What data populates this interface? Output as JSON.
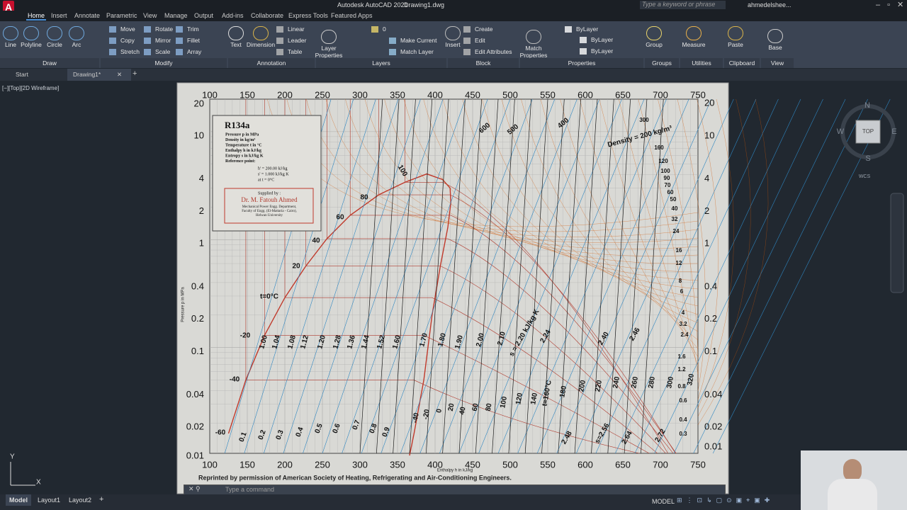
{
  "title_bar": {
    "app": "Autodesk AutoCAD 2021",
    "file": "Drawing1.dwg",
    "search": "Type a keyword or phrase",
    "user": "ahmedelshee..."
  },
  "ribbon_tabs": [
    "Home",
    "Insert",
    "Annotate",
    "Parametric",
    "View",
    "Manage",
    "Output",
    "Add-ins",
    "Collaborate",
    "Express Tools",
    "Featured Apps"
  ],
  "tools": [
    "Line",
    "Polyline",
    "Circle",
    "Arc",
    "Move",
    "Rotate",
    "Trim",
    "Copy",
    "Mirror",
    "Fillet",
    "Stretch",
    "Scale",
    "Array",
    "Text",
    "Dimension",
    "Linear",
    "Leader",
    "Table",
    "Layer Properties",
    "Make Current",
    "Match Layer",
    "0",
    "Insert",
    "Create",
    "Edit",
    "Edit Attributes",
    "Match Properties",
    "ByLayer",
    "ByLayer",
    "ByLayer",
    "Group",
    "Measure",
    "Paste",
    "Base"
  ],
  "panels": [
    "Draw",
    "Modify",
    "Annotation",
    "Layers",
    "Block",
    "Properties",
    "Groups",
    "Utilities",
    "Clipboard",
    "View"
  ],
  "doc_tabs": [
    "Start",
    "Drawing1*"
  ],
  "viewport_label": "[−][Top][2D Wireframe]",
  "viewcube": {
    "n": "N",
    "w": "W",
    "e": "E",
    "s": "S",
    "top": "TOP",
    "wcs": "WCS"
  },
  "ucs": {
    "y": "Y",
    "x": "X"
  },
  "command_line": "Type a command",
  "status_bar": {
    "tabs": [
      "Model",
      "Layout1",
      "Layout2"
    ],
    "mode": "MODEL"
  },
  "diagram": {
    "enthalpy_ticks_top": [
      "100",
      "150",
      "200",
      "250",
      "300",
      "350",
      "400",
      "450",
      "500",
      "550",
      "600",
      "650",
      "700",
      "750"
    ],
    "enthalpy_ticks_bottom": [
      "100",
      "150",
      "200",
      "250",
      "300",
      "350",
      "400",
      "450",
      "500",
      "550",
      "600",
      "650",
      "700",
      "750"
    ],
    "pressure_ticks_left": [
      "20",
      "10",
      "4",
      "2",
      "1",
      "0.4",
      "0.2",
      "0.1",
      "0.04",
      "0.02",
      "0.01"
    ],
    "pressure_ticks_right": [
      "20",
      "10",
      "4",
      "2",
      "1",
      "0.4",
      "0.2",
      "0.1",
      "0.04",
      "0.02",
      "0.01"
    ],
    "x_axis_title": "Enthalpy h in kJ/kg",
    "y_axis_title": "Pressure p in MPa",
    "legend_box": {
      "fluid": "R134a",
      "lines": [
        "Pressure p in MPa",
        "Density in kg/m³",
        "Temperature t in °C",
        "Enthalpy h in kJ/kg",
        "Entropy s in kJ/kg K",
        "Reference point:"
      ],
      "reference": [
        "h' = 200.00 kJ/kg",
        "s' = 1.000 kJ/kg K",
        "at t = 0°C"
      ],
      "supplied_by": "Supplied by :",
      "author": "Dr. M. Fatouh Ahmed",
      "affiliation": [
        "Mechanical Power Engg. Department,",
        "Faculty of Engg. (El-Mattaria - Cairo),",
        "Helwan University"
      ]
    },
    "curve_labels": [
      "t=0°C",
      "20",
      "40",
      "60",
      "80",
      "100",
      "-20",
      "-40",
      "-60",
      "600",
      "500",
      "400",
      "Density = 200 kg/m³",
      "300",
      "160",
      "120",
      "100",
      "90",
      "70",
      "60",
      "50",
      "40",
      "32",
      "24",
      "16",
      "12",
      "8",
      "6",
      "4",
      "3.2",
      "2.4",
      "1.6",
      "1.2",
      "0.8",
      "0.6",
      "0.4",
      "0.3",
      "-40",
      "-20",
      "0",
      "20",
      "40",
      "60",
      "80",
      "100",
      "120",
      "140",
      "t=160°C",
      "180",
      "200",
      "220",
      "240",
      "260",
      "280",
      "300",
      "320",
      "1.00",
      "1.04",
      "1.08",
      "1.12",
      "1.20",
      "1.28",
      "1.36",
      "1.44",
      "1.52",
      "1.60",
      "1.70",
      "1.80",
      "1.90",
      "2.00",
      "2.10",
      "s = 2.20 kJ/kg K",
      "2.24",
      "2.40",
      "2.46",
      "0.1",
      "0.2",
      "0.3",
      "0.4",
      "0.5",
      "0.6",
      "0.7",
      "0.8",
      "0.9",
      "2.48",
      "s=2.56",
      "2.64",
      "2.72"
    ],
    "footer": "Reprinted by permission of American Society of Heating, Refrigerating and Air-Conditioning Engineers."
  }
}
